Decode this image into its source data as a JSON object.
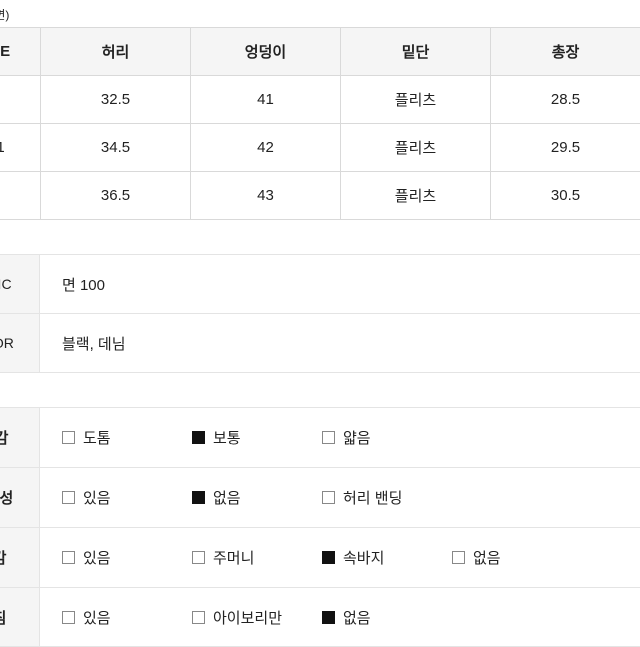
{
  "unit_note": "m/단면)",
  "size_table": {
    "headers": [
      "ZE",
      "허리",
      "엉덩이",
      "밑단",
      "총장"
    ],
    "rows": [
      [
        "",
        "32.5",
        "41",
        "플리츠",
        "28.5"
      ],
      [
        "1",
        "34.5",
        "42",
        "플리츠",
        "29.5"
      ],
      [
        "",
        "36.5",
        "43",
        "플리츠",
        "30.5"
      ]
    ]
  },
  "kv": [
    {
      "label": "RIC",
      "value": "면 100"
    },
    {
      "label": "LOR",
      "value": "블랙, 데님"
    }
  ],
  "attrs": [
    {
      "label": "I감",
      "options": [
        {
          "text": "도톰",
          "checked": false
        },
        {
          "text": "보통",
          "checked": true
        },
        {
          "text": "얇음",
          "checked": false
        }
      ]
    },
    {
      "label": "축성",
      "options": [
        {
          "text": "있음",
          "checked": false
        },
        {
          "text": "없음",
          "checked": true
        },
        {
          "text": "허리 밴딩",
          "checked": false
        }
      ]
    },
    {
      "label": "감",
      "options": [
        {
          "text": "있음",
          "checked": false
        },
        {
          "text": "주머니",
          "checked": false
        },
        {
          "text": "속바지",
          "checked": true
        },
        {
          "text": "없음",
          "checked": false
        }
      ]
    },
    {
      "label": "침",
      "options": [
        {
          "text": "있음",
          "checked": false
        },
        {
          "text": "아이보리만",
          "checked": false
        },
        {
          "text": "없음",
          "checked": true
        }
      ]
    }
  ]
}
